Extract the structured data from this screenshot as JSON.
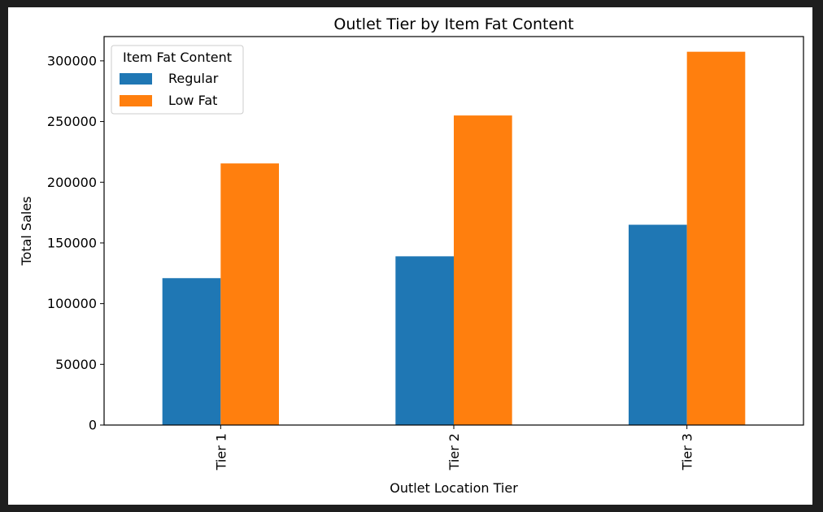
{
  "chart_data": {
    "type": "bar",
    "title": "Outlet Tier by Item Fat Content",
    "xlabel": "Outlet Location Tier",
    "ylabel": "Total Sales",
    "categories": [
      "Tier 1",
      "Tier 2",
      "Tier 3"
    ],
    "series": [
      {
        "name": "Regular",
        "color": "#1f77b4",
        "values": [
          121000,
          139000,
          165000
        ]
      },
      {
        "name": "Low Fat",
        "color": "#ff7f0e",
        "values": [
          215500,
          255000,
          307500
        ]
      }
    ],
    "ylim": [
      0,
      320000
    ],
    "yticks": [
      0,
      50000,
      100000,
      150000,
      200000,
      250000,
      300000
    ],
    "ytick_labels": [
      "0",
      "50000",
      "100000",
      "150000",
      "200000",
      "250000",
      "300000"
    ],
    "legend": {
      "title": "Item Fat Content",
      "position": "top-left"
    },
    "grid": false
  }
}
